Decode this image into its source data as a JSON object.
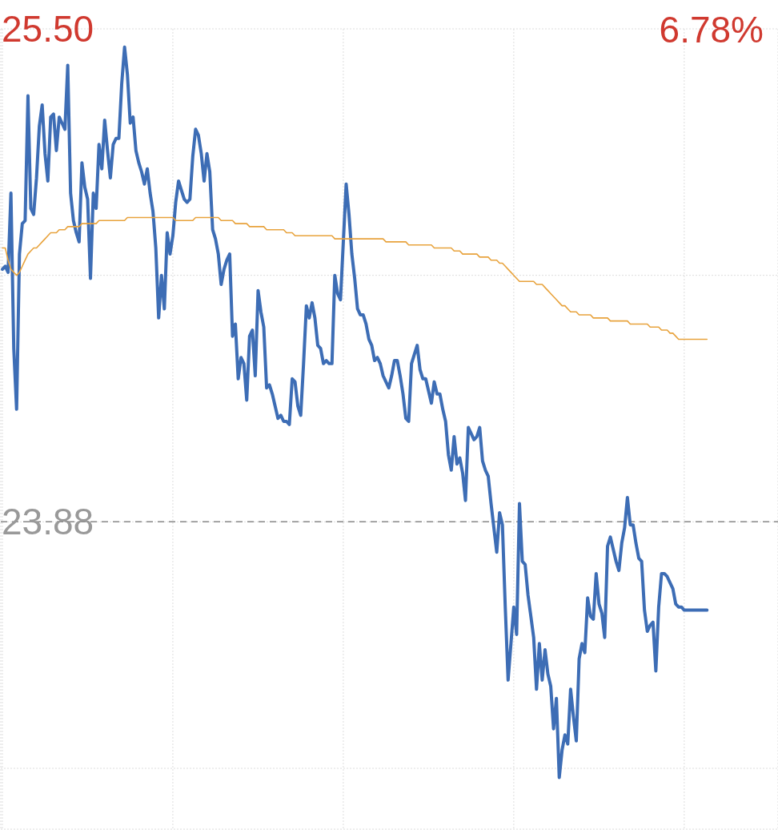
{
  "chart_data": {
    "type": "line",
    "categories": [
      null,
      null,
      null,
      null,
      null,
      null,
      null,
      null,
      null,
      null,
      null,
      null,
      null,
      null,
      null,
      null,
      null,
      null,
      null,
      null,
      null,
      null,
      null,
      null,
      null,
      null,
      null,
      null,
      null,
      null,
      null,
      null,
      null,
      null,
      null,
      null,
      null,
      null,
      null,
      null,
      null,
      null,
      null,
      null,
      null,
      null,
      null,
      null,
      null,
      null,
      null,
      null,
      null,
      null,
      null,
      null,
      null,
      null,
      null,
      null,
      null,
      null,
      null,
      null,
      null,
      null,
      null,
      null,
      null,
      null,
      null,
      null,
      null,
      null,
      null,
      null,
      null,
      null,
      null,
      null,
      null,
      null,
      null,
      null,
      null,
      null,
      null,
      null,
      null,
      null,
      null,
      null,
      null,
      null,
      null,
      null,
      null,
      null,
      null,
      null,
      null,
      null,
      null,
      null,
      null,
      null,
      null,
      null,
      null,
      null,
      null,
      null,
      null,
      null,
      null,
      null,
      null,
      null,
      null,
      null,
      null,
      null,
      null,
      null,
      null,
      null,
      null,
      null,
      null,
      null,
      null,
      null,
      null,
      null,
      null,
      null,
      null,
      null,
      null,
      null,
      null,
      null,
      null,
      null,
      null,
      null,
      null,
      null,
      null,
      null,
      null,
      null,
      null,
      null,
      null,
      null,
      null,
      null,
      null,
      null,
      null,
      null,
      null,
      null,
      null,
      null,
      null,
      null,
      null,
      null,
      null,
      null,
      null,
      null,
      null,
      null,
      null,
      null,
      null,
      null,
      null,
      null,
      null,
      null,
      null,
      null,
      null,
      null,
      null,
      null,
      null,
      null,
      null,
      null,
      null,
      null,
      null,
      null,
      null,
      null,
      null,
      null,
      null,
      null,
      null,
      null,
      null,
      null,
      null,
      null,
      null,
      null,
      null,
      null,
      null,
      null,
      null,
      null,
      null,
      null,
      null,
      null,
      null,
      null,
      null,
      null,
      null,
      null,
      null,
      null,
      null,
      null,
      null,
      null,
      null,
      null,
      null,
      null,
      null,
      null,
      null,
      null,
      null,
      null,
      null,
      null,
      null,
      null,
      null,
      null,
      null,
      null,
      null,
      null,
      null,
      null,
      null,
      null,
      null,
      null,
      null,
      null,
      null,
      null,
      null,
      null,
      null,
      null,
      null,
      null,
      null,
      null,
      null,
      null
    ],
    "ylim": [
      22.87,
      25.5
    ],
    "yticks": [
      {
        "value": 25.5,
        "label": "25.50"
      },
      {
        "value": 24.69,
        "label": null
      },
      {
        "value": 23.88,
        "label": "23.88"
      },
      {
        "value": 23.07,
        "label": null
      }
    ],
    "tick_labels": "y",
    "grid": true,
    "legend": false,
    "marker": "none",
    "line_style": "solid",
    "ref_lines": [
      {
        "axis": "y",
        "value": 23.88,
        "line_style": "dashed",
        "color": "#888888"
      }
    ],
    "annotations": [
      "6.78%"
    ],
    "series": [
      {
        "color": "#3d6db5",
        "values": [
          24.71,
          24.72,
          24.7,
          24.96,
          24.45,
          24.25,
          24.76,
          24.86,
          24.87,
          25.28,
          24.91,
          24.89,
          25.01,
          25.18,
          25.25,
          25.09,
          25.0,
          25.21,
          25.22,
          25.1,
          25.21,
          25.19,
          25.17,
          25.38,
          24.96,
          24.87,
          24.83,
          24.8,
          25.06,
          24.98,
          24.94,
          24.68,
          24.96,
          24.91,
          25.12,
          25.04,
          25.2,
          25.1,
          25.01,
          25.12,
          25.14,
          25.14,
          25.32,
          25.44,
          25.35,
          25.19,
          25.21,
          25.1,
          25.06,
          25.03,
          24.99,
          25.04,
          24.96,
          24.9,
          24.78,
          24.55,
          24.69,
          24.58,
          24.83,
          24.76,
          24.82,
          24.93,
          25.0,
          24.97,
          24.94,
          24.93,
          24.94,
          25.08,
          25.17,
          25.15,
          25.09,
          25.0,
          25.09,
          25.03,
          24.84,
          24.81,
          24.76,
          24.66,
          24.71,
          24.74,
          24.76,
          24.49,
          24.53,
          24.35,
          24.42,
          24.4,
          24.28,
          24.49,
          24.51,
          24.36,
          24.64,
          24.57,
          24.52,
          24.32,
          24.33,
          24.3,
          24.26,
          24.22,
          24.23,
          24.21,
          24.21,
          24.2,
          24.35,
          24.34,
          24.26,
          24.23,
          24.4,
          24.59,
          24.55,
          24.6,
          24.55,
          24.46,
          24.45,
          24.4,
          24.41,
          24.4,
          24.4,
          24.69,
          24.63,
          24.61,
          24.8,
          24.99,
          24.89,
          24.76,
          24.68,
          24.58,
          24.56,
          24.56,
          24.53,
          24.48,
          24.46,
          24.41,
          24.42,
          24.4,
          24.36,
          24.34,
          24.32,
          24.36,
          24.41,
          24.41,
          24.36,
          24.3,
          24.22,
          24.21,
          24.4,
          24.43,
          24.46,
          24.38,
          24.35,
          24.35,
          24.31,
          24.27,
          24.34,
          24.3,
          24.3,
          24.25,
          24.21,
          24.1,
          24.05,
          24.16,
          24.07,
          24.09,
          24.04,
          23.95,
          24.19,
          24.17,
          24.15,
          24.16,
          24.19,
          24.08,
          24.05,
          24.03,
          23.94,
          23.86,
          23.78,
          23.91,
          23.87,
          23.6,
          23.36,
          23.48,
          23.6,
          23.51,
          23.94,
          23.75,
          23.74,
          23.64,
          23.57,
          23.5,
          23.33,
          23.48,
          23.36,
          23.46,
          23.38,
          23.34,
          23.2,
          23.3,
          23.04,
          23.13,
          23.18,
          23.15,
          23.33,
          23.24,
          23.16,
          23.43,
          23.48,
          23.45,
          23.63,
          23.57,
          23.56,
          23.71,
          23.61,
          23.58,
          23.5,
          23.8,
          23.83,
          23.79,
          23.75,
          23.72,
          23.81,
          23.86,
          23.96,
          23.87,
          23.87,
          23.81,
          23.76,
          23.75,
          23.59,
          23.52,
          23.54,
          23.55,
          23.39,
          23.6,
          23.71,
          23.71,
          23.7,
          23.68,
          23.66,
          23.61,
          23.6,
          23.6,
          23.59,
          23.59,
          23.59,
          23.59,
          23.59,
          23.59,
          23.59,
          23.59,
          23.59,
          null,
          null,
          null,
          null,
          null,
          null,
          null,
          null,
          null,
          null,
          null,
          null,
          null,
          null,
          null,
          null,
          null,
          null,
          null,
          null,
          null,
          null,
          null,
          null,
          null
        ]
      },
      {
        "color": "#e8a33d",
        "values": [
          24.78,
          24.78,
          24.74,
          24.71,
          24.7,
          24.69,
          24.7,
          24.72,
          24.74,
          24.76,
          24.77,
          24.78,
          24.78,
          24.79,
          24.8,
          24.81,
          24.82,
          24.83,
          24.83,
          24.83,
          24.84,
          24.84,
          24.84,
          24.85,
          24.85,
          24.85,
          24.85,
          24.85,
          24.86,
          24.86,
          24.86,
          24.86,
          24.86,
          24.86,
          24.87,
          24.87,
          24.87,
          24.87,
          24.87,
          24.87,
          24.87,
          24.87,
          24.87,
          24.87,
          24.88,
          24.88,
          24.88,
          24.88,
          24.88,
          24.88,
          24.88,
          24.88,
          24.88,
          24.88,
          24.88,
          24.88,
          24.88,
          24.88,
          24.88,
          24.88,
          24.88,
          24.87,
          24.87,
          24.87,
          24.87,
          24.87,
          24.87,
          24.87,
          24.88,
          24.88,
          24.88,
          24.88,
          24.88,
          24.88,
          24.88,
          24.88,
          24.88,
          24.87,
          24.87,
          24.87,
          24.87,
          24.87,
          24.86,
          24.86,
          24.86,
          24.86,
          24.86,
          24.85,
          24.85,
          24.85,
          24.85,
          24.85,
          24.85,
          24.84,
          24.84,
          24.84,
          24.84,
          24.84,
          24.84,
          24.84,
          24.83,
          24.83,
          24.83,
          24.82,
          24.82,
          24.82,
          24.82,
          24.82,
          24.82,
          24.82,
          24.82,
          24.82,
          24.82,
          24.82,
          24.82,
          24.82,
          24.82,
          24.81,
          24.81,
          24.81,
          24.81,
          24.81,
          24.81,
          24.81,
          24.81,
          24.81,
          24.81,
          24.81,
          24.81,
          24.81,
          24.81,
          24.81,
          24.81,
          24.81,
          24.81,
          24.8,
          24.8,
          24.8,
          24.8,
          24.8,
          24.8,
          24.8,
          24.8,
          24.79,
          24.79,
          24.79,
          24.79,
          24.79,
          24.79,
          24.79,
          24.79,
          24.79,
          24.78,
          24.78,
          24.78,
          24.78,
          24.78,
          24.78,
          24.78,
          24.77,
          24.77,
          24.77,
          24.76,
          24.76,
          24.76,
          24.76,
          24.76,
          24.76,
          24.75,
          24.75,
          24.75,
          24.75,
          24.74,
          24.74,
          24.74,
          24.73,
          24.73,
          24.72,
          24.71,
          24.7,
          24.69,
          24.68,
          24.67,
          24.67,
          24.67,
          24.67,
          24.67,
          24.67,
          24.66,
          24.66,
          24.66,
          24.65,
          24.64,
          24.63,
          24.62,
          24.61,
          24.6,
          24.59,
          24.59,
          24.58,
          24.57,
          24.57,
          24.57,
          24.56,
          24.56,
          24.56,
          24.56,
          24.56,
          24.55,
          24.55,
          24.55,
          24.55,
          24.55,
          24.55,
          24.54,
          24.54,
          24.54,
          24.54,
          24.54,
          24.54,
          24.54,
          24.53,
          24.53,
          24.53,
          24.53,
          24.53,
          24.53,
          24.53,
          24.52,
          24.52,
          24.52,
          24.52,
          24.51,
          24.51,
          24.51,
          24.5,
          24.5,
          24.49,
          24.48,
          24.48,
          24.48,
          24.48,
          24.48,
          24.48,
          24.48,
          24.48,
          24.48,
          24.48,
          24.48,
          null,
          null,
          null,
          null,
          null,
          null,
          null,
          null,
          null,
          null,
          null,
          null,
          null,
          null,
          null,
          null,
          null,
          null,
          null,
          null,
          null,
          null,
          null,
          null,
          null
        ]
      }
    ]
  }
}
